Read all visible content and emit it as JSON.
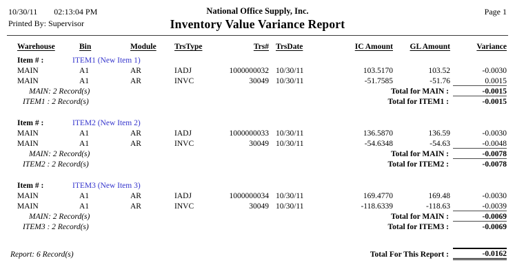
{
  "header": {
    "date": "10/30/11",
    "time": "02:13:04 PM",
    "printed_by": "Printed By: Supervisor",
    "company": "National Office Supply, Inc.",
    "title": "Inventory Value Variance Report",
    "page": "Page 1"
  },
  "accent_colors": {
    "item_name_blue": "#3333cc"
  },
  "table": {
    "columns": [
      "Warehouse",
      "Bin",
      "Module",
      "TrsType",
      "Trs#",
      "TrsDate",
      "IC Amount",
      "GL Amount",
      "Variance"
    ],
    "item_prefix": "Item # :",
    "items": [
      {
        "item_name": "ITEM1 (New Item 1)",
        "rows": [
          [
            "MAIN",
            "A1",
            "AR",
            "IADJ",
            "1000000032",
            "10/30/11",
            "103.5170",
            "103.52",
            "-0.0030"
          ],
          [
            "MAIN",
            "A1",
            "AR",
            "INVC",
            "30049",
            "10/30/11",
            "-51.7585",
            "-51.76",
            "0.0015"
          ]
        ],
        "warehouse_summary": "MAIN: 2 Record(s)",
        "warehouse_total_label": "Total for MAIN :",
        "warehouse_total_value": "-0.0015",
        "item_summary": "ITEM1 : 2 Record(s)",
        "item_total_label": "Total for ITEM1 :",
        "item_total_value": "-0.0015"
      },
      {
        "item_name": "ITEM2 (New Item 2)",
        "rows": [
          [
            "MAIN",
            "A1",
            "AR",
            "IADJ",
            "1000000033",
            "10/30/11",
            "136.5870",
            "136.59",
            "-0.0030"
          ],
          [
            "MAIN",
            "A1",
            "AR",
            "INVC",
            "30049",
            "10/30/11",
            "-54.6348",
            "-54.63",
            "-0.0048"
          ]
        ],
        "warehouse_summary": "MAIN: 2 Record(s)",
        "warehouse_total_label": "Total for MAIN :",
        "warehouse_total_value": "-0.0078",
        "item_summary": "ITEM2 : 2 Record(s)",
        "item_total_label": "Total for ITEM2 :",
        "item_total_value": "-0.0078"
      },
      {
        "item_name": "ITEM3 (New Item 3)",
        "rows": [
          [
            "MAIN",
            "A1",
            "AR",
            "IADJ",
            "1000000034",
            "10/30/11",
            "169.4770",
            "169.48",
            "-0.0030"
          ],
          [
            "MAIN",
            "A1",
            "AR",
            "INVC",
            "30049",
            "10/30/11",
            "-118.6339",
            "-118.63",
            "-0.0039"
          ]
        ],
        "warehouse_summary": "MAIN: 2 Record(s)",
        "warehouse_total_label": "Total for MAIN :",
        "warehouse_total_value": "-0.0069",
        "item_summary": "ITEM3 : 2 Record(s)",
        "item_total_label": "Total for ITEM3 :",
        "item_total_value": "-0.0069"
      }
    ],
    "report_summary": "Report: 6 Record(s)",
    "report_total_label": "Total For This Report :",
    "report_total_value": "-0.0162"
  }
}
